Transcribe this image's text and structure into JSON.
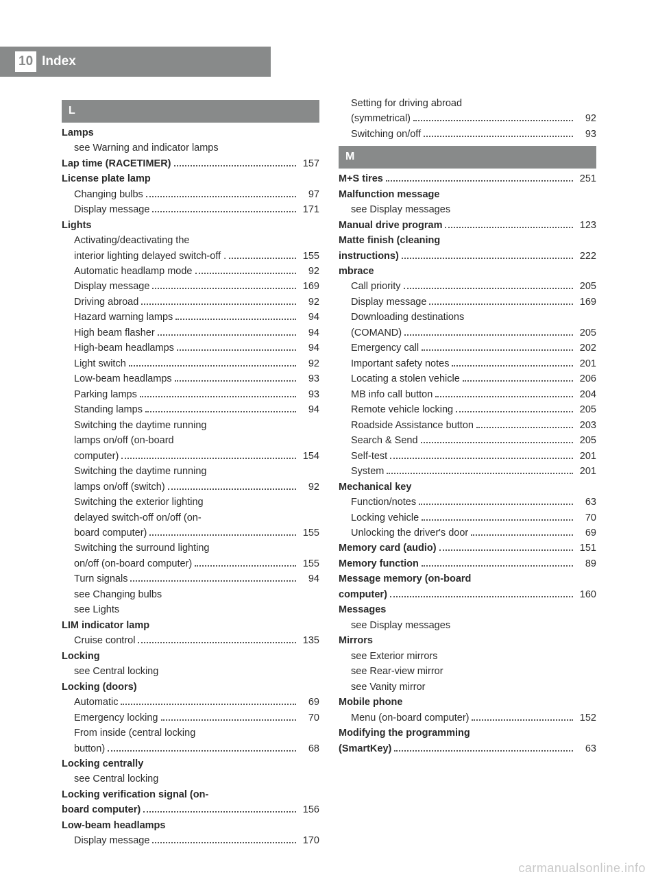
{
  "header": {
    "page_number": "10",
    "title": "Index"
  },
  "watermark": "carmanualsonline.info",
  "colors": {
    "header_bg": "#888a8a",
    "text": "#2a2a2a",
    "watermark": "rgba(0,0,0,0.22)"
  },
  "sections": [
    {
      "letter": "L",
      "items": [
        {
          "label": "Lamps",
          "main": true,
          "page": null
        },
        {
          "label": "see Warning and indicator lamps",
          "sub": true,
          "page": null
        },
        {
          "label": "Lap time (RACETIMER)",
          "main": true,
          "page": "157"
        },
        {
          "label": "License plate lamp",
          "main": true,
          "page": null
        },
        {
          "label": "Changing bulbs",
          "sub": true,
          "page": "97"
        },
        {
          "label": "Display message",
          "sub": true,
          "page": "171"
        },
        {
          "label": "Lights",
          "main": true,
          "page": null
        },
        {
          "label_lines": [
            "Activating/deactivating the",
            "interior lighting delayed switch-off ."
          ],
          "sub": true,
          "page": "155",
          "multiline": true
        },
        {
          "label": "Automatic headlamp mode",
          "sub": true,
          "page": "92"
        },
        {
          "label": "Display message",
          "sub": true,
          "page": "169"
        },
        {
          "label": "Driving abroad",
          "sub": true,
          "page": "92"
        },
        {
          "label": "Hazard warning lamps",
          "sub": true,
          "page": "94"
        },
        {
          "label": "High beam flasher",
          "sub": true,
          "page": "94"
        },
        {
          "label": "High-beam headlamps",
          "sub": true,
          "page": "94"
        },
        {
          "label": "Light switch",
          "sub": true,
          "page": "92"
        },
        {
          "label": "Low-beam headlamps",
          "sub": true,
          "page": "93"
        },
        {
          "label": "Parking lamps",
          "sub": true,
          "page": "93"
        },
        {
          "label": "Standing lamps",
          "sub": true,
          "page": "94"
        },
        {
          "label_lines": [
            "Switching the daytime running",
            "lamps on/off (on-board",
            "computer)"
          ],
          "sub": true,
          "page": "154",
          "multiline": true
        },
        {
          "label_lines": [
            "Switching the daytime running",
            "lamps on/off (switch)"
          ],
          "sub": true,
          "page": "92",
          "multiline": true
        },
        {
          "label_lines": [
            "Switching the exterior lighting",
            "delayed switch-off on/off (on-",
            "board computer)"
          ],
          "sub": true,
          "page": "155",
          "multiline": true
        },
        {
          "label_lines": [
            "Switching the surround lighting",
            "on/off (on-board computer)"
          ],
          "sub": true,
          "page": "155",
          "multiline": true
        },
        {
          "label": "Turn signals",
          "sub": true,
          "page": "94"
        },
        {
          "label": "see Changing bulbs",
          "sub": true,
          "page": null
        },
        {
          "label": "see Lights",
          "sub": true,
          "page": null
        },
        {
          "label": "LIM indicator lamp",
          "main": true,
          "page": null
        },
        {
          "label": "Cruise control",
          "sub": true,
          "page": "135"
        },
        {
          "label": "Locking",
          "main": true,
          "page": null
        },
        {
          "label": "see Central locking",
          "sub": true,
          "page": null
        },
        {
          "label": "Locking (doors)",
          "main": true,
          "page": null
        },
        {
          "label": "Automatic",
          "sub": true,
          "page": "69"
        },
        {
          "label": "Emergency locking",
          "sub": true,
          "page": "70"
        },
        {
          "label_lines": [
            "From inside (central locking",
            "button)"
          ],
          "sub": true,
          "page": "68",
          "multiline": true
        },
        {
          "label": "Locking centrally",
          "main": true,
          "page": null
        },
        {
          "label": "see Central locking",
          "sub": true,
          "page": null
        },
        {
          "label_lines": [
            "Locking verification signal (on-",
            "board computer)"
          ],
          "main": true,
          "page": "156",
          "multiline": true
        },
        {
          "label": "Low-beam headlamps",
          "main": true,
          "page": null
        },
        {
          "label": "Display message",
          "sub": true,
          "page": "170"
        },
        {
          "label_lines": [
            "Setting for driving abroad",
            "(symmetrical)"
          ],
          "sub": true,
          "page": "92",
          "multiline": true
        },
        {
          "label": "Switching on/off",
          "sub": true,
          "page": "93"
        }
      ]
    },
    {
      "letter": "M",
      "items": [
        {
          "label": "M+S tires",
          "main": true,
          "page": "251"
        },
        {
          "label": "Malfunction message",
          "main": true,
          "page": null
        },
        {
          "label": "see Display messages",
          "sub": true,
          "page": null
        },
        {
          "label": "Manual drive program",
          "main": true,
          "page": "123"
        },
        {
          "label_lines": [
            "Matte finish (cleaning",
            "instructions)"
          ],
          "main": true,
          "page": "222",
          "multiline": true
        },
        {
          "label": "mbrace",
          "main": true,
          "page": null
        },
        {
          "label": "Call priority",
          "sub": true,
          "page": "205"
        },
        {
          "label": "Display message",
          "sub": true,
          "page": "169"
        },
        {
          "label_lines": [
            "Downloading destinations",
            "(COMAND)"
          ],
          "sub": true,
          "page": "205",
          "multiline": true
        },
        {
          "label": "Emergency call",
          "sub": true,
          "page": "202"
        },
        {
          "label": "Important safety notes",
          "sub": true,
          "page": "201"
        },
        {
          "label": "Locating a stolen vehicle",
          "sub": true,
          "page": "206"
        },
        {
          "label": "MB info call button",
          "sub": true,
          "page": "204"
        },
        {
          "label": "Remote vehicle locking",
          "sub": true,
          "page": "205"
        },
        {
          "label": "Roadside Assistance button",
          "sub": true,
          "page": "203"
        },
        {
          "label": "Search & Send",
          "sub": true,
          "page": "205"
        },
        {
          "label": "Self-test",
          "sub": true,
          "page": "201"
        },
        {
          "label": "System",
          "sub": true,
          "page": "201"
        },
        {
          "label": "Mechanical key",
          "main": true,
          "page": null
        },
        {
          "label": "Function/notes",
          "sub": true,
          "page": "63"
        },
        {
          "label": "Locking vehicle",
          "sub": true,
          "page": "70"
        },
        {
          "label": "Unlocking the driver's door",
          "sub": true,
          "page": "69"
        },
        {
          "label": "Memory card (audio)",
          "main": true,
          "page": "151"
        },
        {
          "label": "Memory function",
          "main": true,
          "page": "89"
        },
        {
          "label_lines": [
            "Message memory (on-board",
            "computer)"
          ],
          "main": true,
          "page": "160",
          "multiline": true
        },
        {
          "label": "Messages",
          "main": true,
          "page": null
        },
        {
          "label": "see Display messages",
          "sub": true,
          "page": null
        },
        {
          "label": "Mirrors",
          "main": true,
          "page": null
        },
        {
          "label": "see Exterior mirrors",
          "sub": true,
          "page": null
        },
        {
          "label": "see Rear-view mirror",
          "sub": true,
          "page": null
        },
        {
          "label": "see Vanity mirror",
          "sub": true,
          "page": null
        },
        {
          "label": "Mobile phone",
          "main": true,
          "page": null
        },
        {
          "label": "Menu (on-board computer)",
          "sub": true,
          "page": "152"
        },
        {
          "label_lines": [
            "Modifying the programming",
            "(SmartKey)"
          ],
          "main": true,
          "page": "63",
          "multiline": true
        }
      ]
    }
  ]
}
